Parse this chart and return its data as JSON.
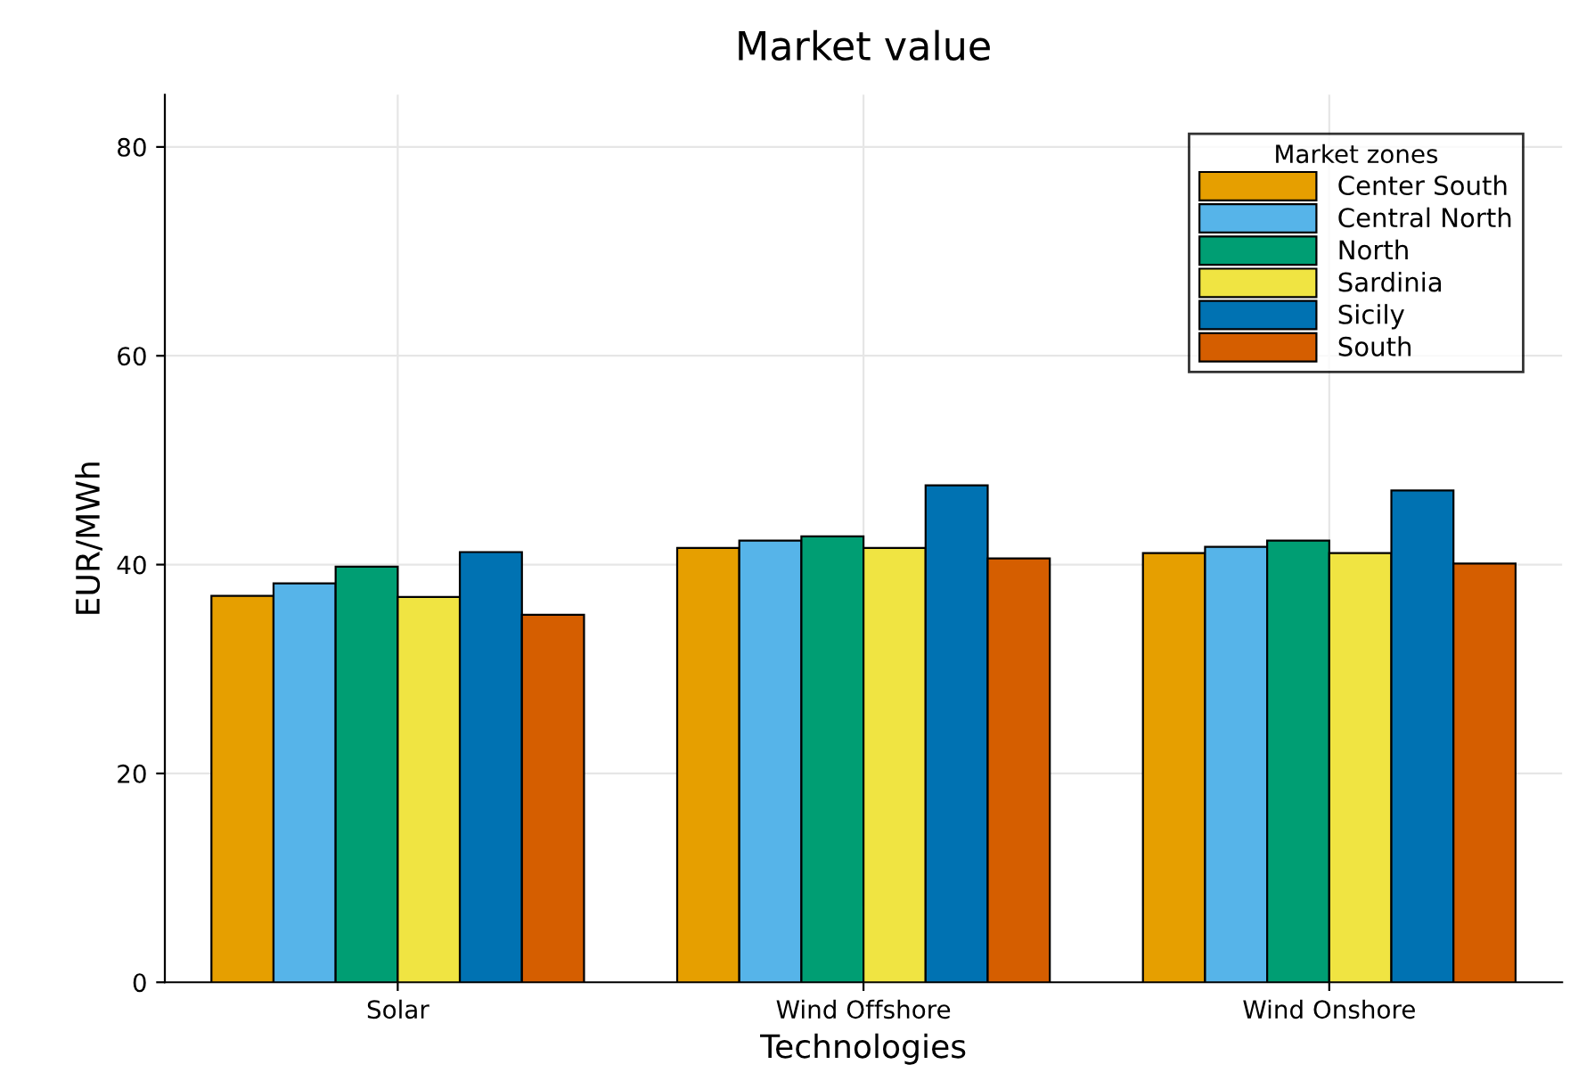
{
  "chart_data": {
    "type": "bar",
    "title": "Market value",
    "xlabel": "Technologies",
    "ylabel": "EUR/MWh",
    "legend_title": "Market zones",
    "categories": [
      "Solar",
      "Wind Offshore",
      "Wind Onshore"
    ],
    "series": [
      {
        "name": "Center South",
        "color": "#e69f00",
        "values": [
          37.0,
          41.6,
          41.1
        ]
      },
      {
        "name": "Central North",
        "color": "#56b4e9",
        "values": [
          38.2,
          42.3,
          41.7
        ]
      },
      {
        "name": "North",
        "color": "#009e73",
        "values": [
          39.8,
          42.7,
          42.3
        ]
      },
      {
        "name": "Sardinia",
        "color": "#f0e442",
        "values": [
          36.9,
          41.6,
          41.1
        ]
      },
      {
        "name": "Sicily",
        "color": "#0072b2",
        "values": [
          41.2,
          47.6,
          47.1
        ]
      },
      {
        "name": "South",
        "color": "#d55e00",
        "values": [
          35.2,
          40.6,
          40.1
        ]
      }
    ],
    "ylim": [
      0,
      85
    ],
    "yticks": [
      0,
      20,
      40,
      60,
      80
    ],
    "grid": true,
    "legend": "top right"
  }
}
